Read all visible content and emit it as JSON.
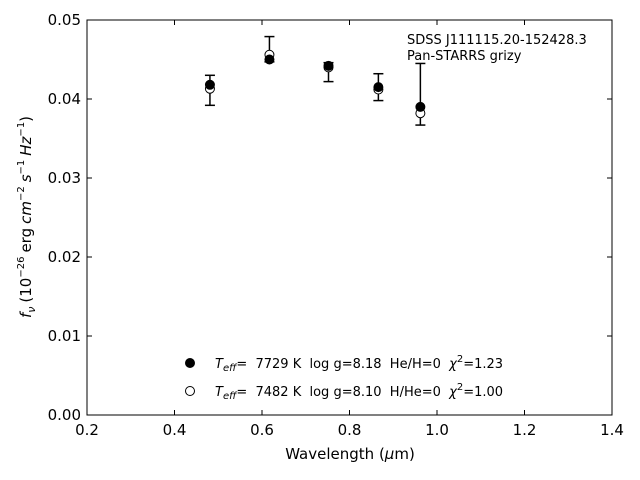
{
  "chart_data": {
    "type": "scatter",
    "xlabel_prefix": "Wavelength (",
    "xlabel_mu": "μ",
    "xlabel_suffix": "m)",
    "ylabel": {
      "f": "f",
      "nu": "ν",
      "open": "(10",
      "exp26": "−26",
      "erg": "erg",
      "cm": "cm",
      "expm2": "−2",
      "s": "s",
      "expm1": "−1",
      "hz": "Hz",
      "expm1b": "−1",
      "close": ")"
    },
    "xlim": [
      0.2,
      1.4
    ],
    "ylim": [
      0.0,
      0.05
    ],
    "x_ticks": [
      0.2,
      0.4,
      0.6,
      0.8,
      1.0,
      1.2,
      1.4
    ],
    "x_tick_labels": [
      "0.2",
      "0.4",
      "0.6",
      "0.8",
      "1.0",
      "1.2",
      "1.4"
    ],
    "y_ticks": [
      0.0,
      0.01,
      0.02,
      0.03,
      0.04,
      0.05
    ],
    "y_tick_labels": [
      "0.00",
      "0.01",
      "0.02",
      "0.03",
      "0.04",
      "0.05"
    ],
    "grid": false,
    "annotations": [
      "SDSS J111115.20-152428.3",
      "Pan-STARRS grizy"
    ],
    "observed": {
      "x": [
        0.481,
        0.617,
        0.752,
        0.866,
        0.962
      ],
      "y": [
        0.0411,
        0.0463,
        0.0434,
        0.0415,
        0.0406
      ],
      "err": [
        0.0019,
        0.0016,
        0.0012,
        0.0017,
        0.0039
      ]
    },
    "series": [
      {
        "marker": "filled",
        "legend_teff": "T",
        "legend_eff": "eff",
        "legend_rest": "=  7729 K  log g=8.18  He/H=0  ",
        "legend_chi": "χ",
        "legend_two": "2",
        "legend_end": "=1.23",
        "x": [
          0.481,
          0.617,
          0.752,
          0.866,
          0.962
        ],
        "y": [
          0.0418,
          0.045,
          0.0442,
          0.0415,
          0.039
        ]
      },
      {
        "marker": "open",
        "legend_teff": "T",
        "legend_eff": "eff",
        "legend_rest": "=  7482 K  log g=8.10  H/He=0  ",
        "legend_chi": "χ",
        "legend_two": "2",
        "legend_end": "=1.00",
        "x": [
          0.481,
          0.617,
          0.752,
          0.866,
          0.962
        ],
        "y": [
          0.0413,
          0.0456,
          0.044,
          0.0412,
          0.0382
        ]
      }
    ],
    "legend_placement": "lower-center"
  }
}
